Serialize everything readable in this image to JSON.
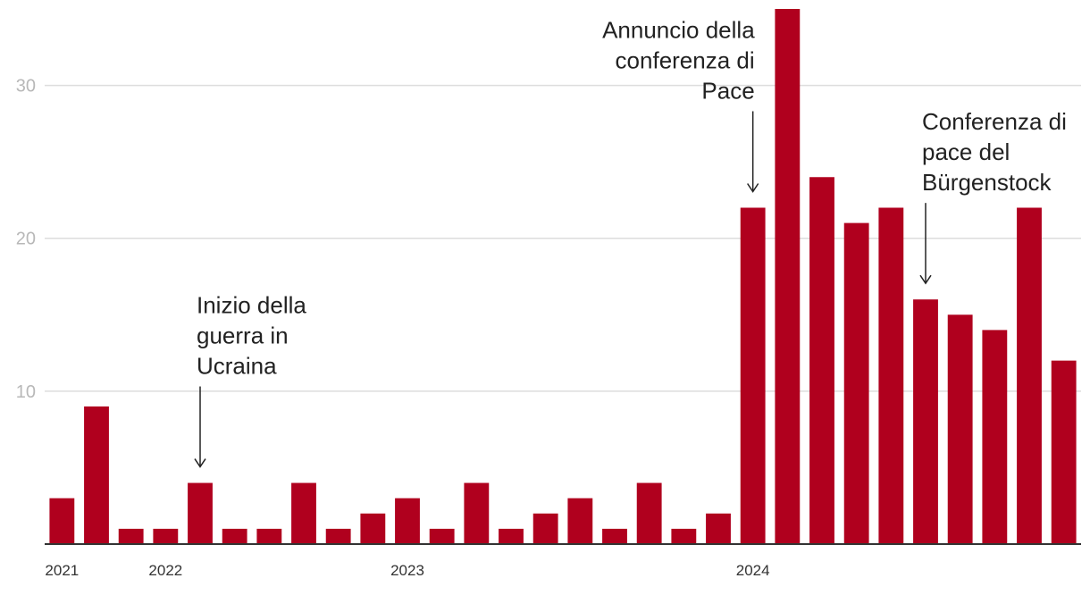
{
  "chart_data": {
    "type": "bar",
    "title": "",
    "xlabel": "",
    "ylabel": "",
    "ylim": [
      0,
      35
    ],
    "yticks": [
      10,
      20,
      30
    ],
    "grid": true,
    "bar_color": "#b0001e",
    "x_labels": [
      {
        "label": "2021",
        "index": 0
      },
      {
        "label": "2022",
        "index": 3
      },
      {
        "label": "2023",
        "index": 10
      },
      {
        "label": "2024",
        "index": 20
      }
    ],
    "values": [
      3,
      9,
      1,
      1,
      4,
      1,
      1,
      4,
      1,
      2,
      3,
      1,
      4,
      1,
      2,
      3,
      1,
      4,
      1,
      2,
      22,
      35,
      24,
      21,
      22,
      16,
      15,
      14,
      22,
      12
    ],
    "annotations": [
      {
        "name": "ukraine",
        "index": 4,
        "align": "start",
        "lines": [
          "Inizio della",
          "guerra in",
          "Ucraina"
        ]
      },
      {
        "name": "announcement",
        "index": 20,
        "align": "end",
        "lines": [
          "Annuncio della",
          "conferenza di",
          "Pace"
        ]
      },
      {
        "name": "burgenstock",
        "index": 25,
        "align": "start",
        "lines": [
          "Conferenza di",
          "pace del",
          "Bürgenstock"
        ]
      }
    ]
  }
}
